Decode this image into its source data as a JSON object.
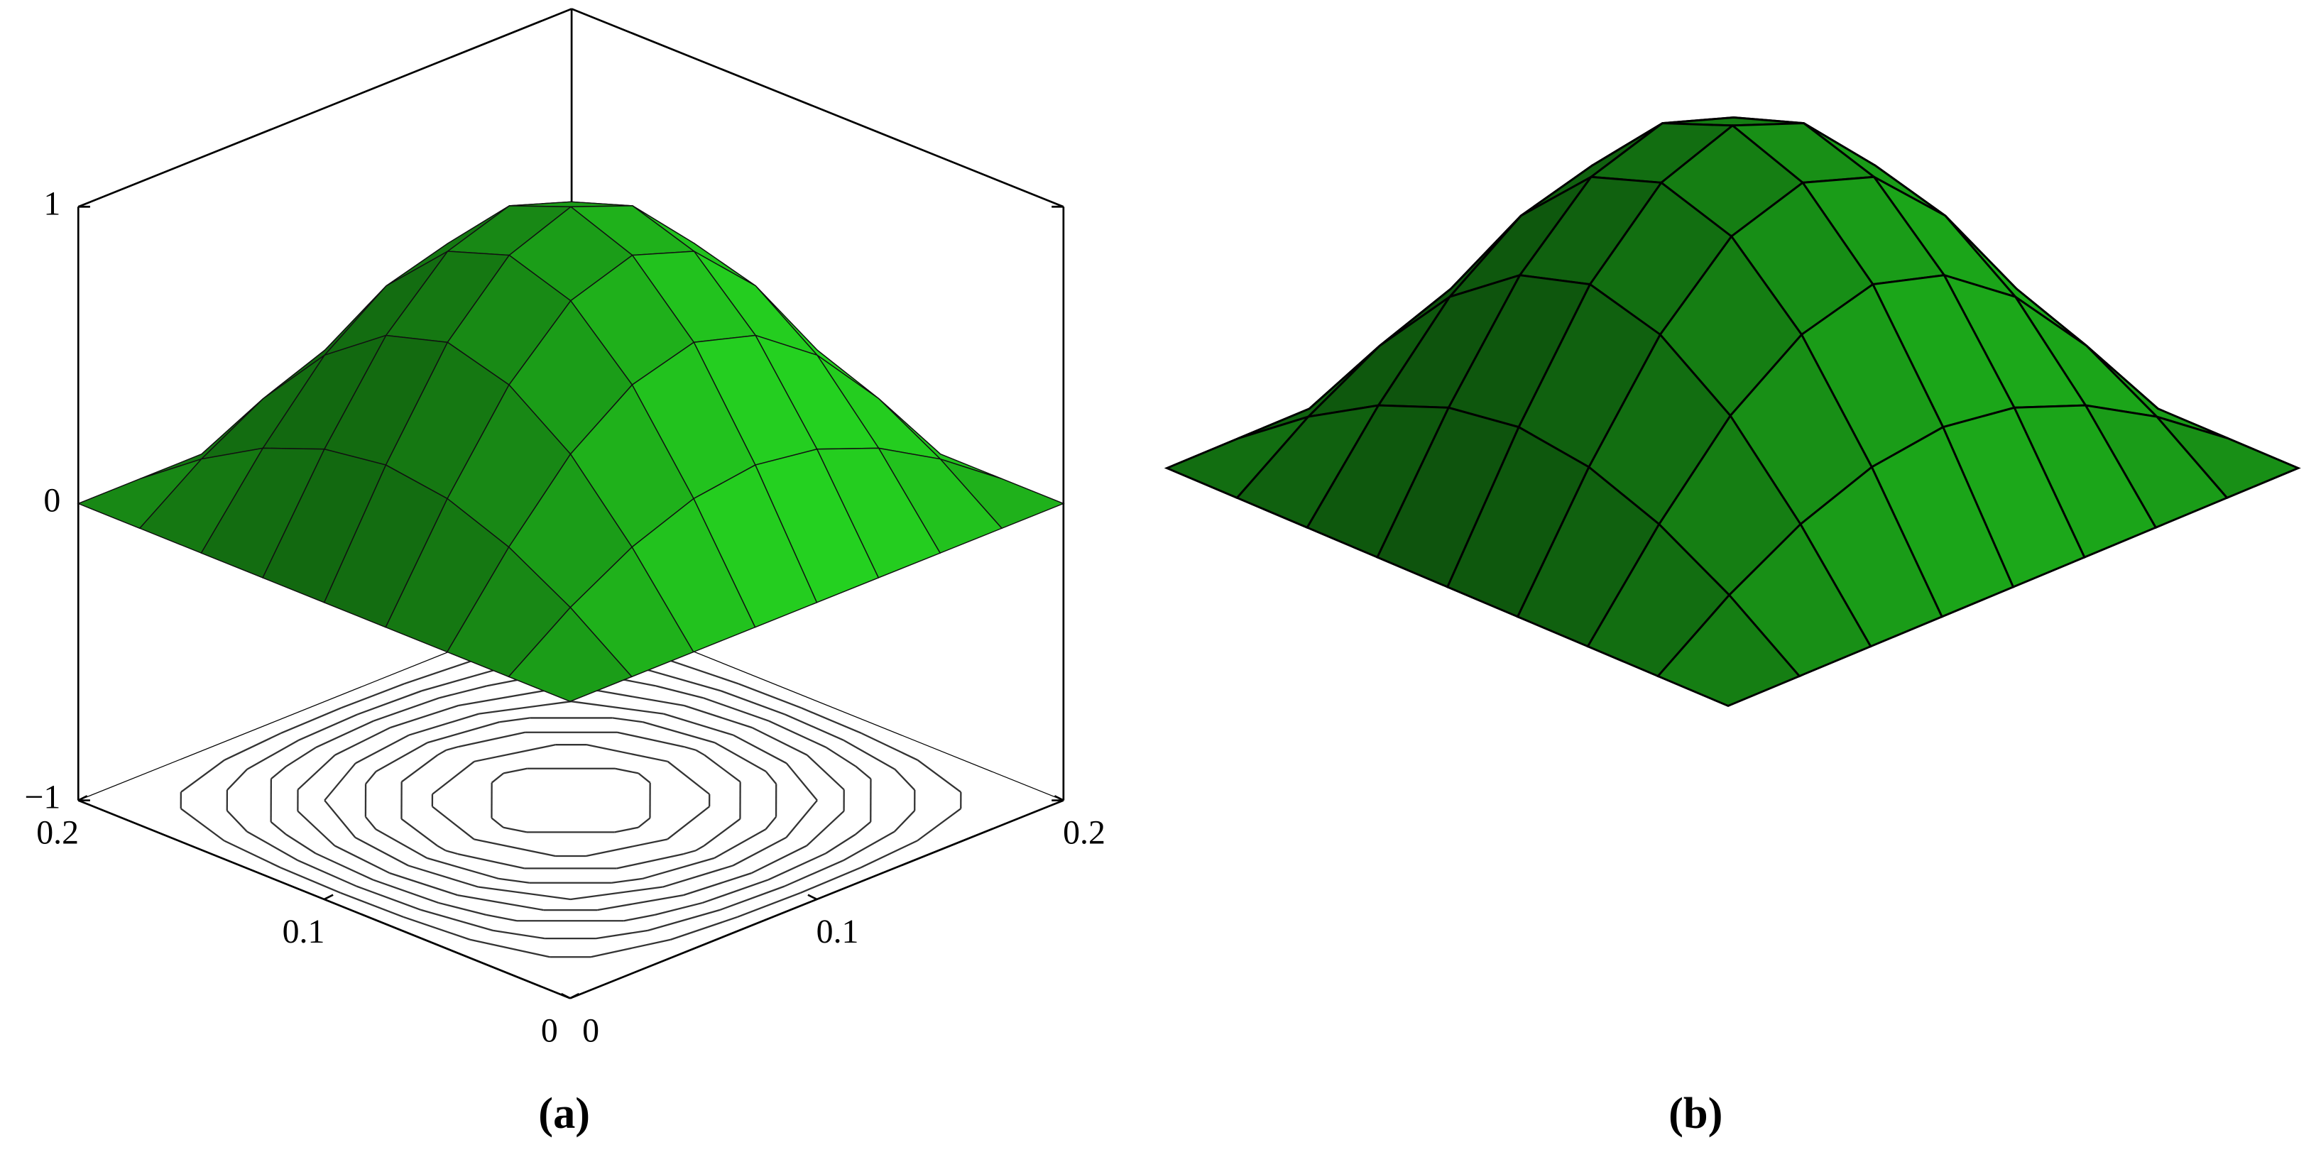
{
  "chart_data": [
    {
      "type": "surface",
      "caption": "(a)",
      "x": [
        0,
        0.025,
        0.05,
        0.075,
        0.1,
        0.125,
        0.15,
        0.175,
        0.2
      ],
      "y": [
        0,
        0.025,
        0.05,
        0.075,
        0.1,
        0.125,
        0.15,
        0.175,
        0.2
      ],
      "z": [
        [
          0,
          0,
          0,
          0,
          0,
          0,
          0,
          0,
          0
        ],
        [
          0,
          0.15,
          0.27,
          0.35,
          0.38,
          0.35,
          0.27,
          0.15,
          0
        ],
        [
          0,
          0.27,
          0.5,
          0.65,
          0.71,
          0.65,
          0.5,
          0.27,
          0
        ],
        [
          0,
          0.35,
          0.65,
          0.85,
          0.92,
          0.85,
          0.65,
          0.35,
          0
        ],
        [
          0,
          0.38,
          0.71,
          0.92,
          1,
          0.92,
          0.71,
          0.38,
          0
        ],
        [
          0,
          0.35,
          0.65,
          0.85,
          0.92,
          0.85,
          0.65,
          0.35,
          0
        ],
        [
          0,
          0.27,
          0.5,
          0.65,
          0.71,
          0.65,
          0.5,
          0.27,
          0
        ],
        [
          0,
          0.15,
          0.27,
          0.35,
          0.38,
          0.35,
          0.27,
          0.15,
          0
        ],
        [
          0,
          0,
          0,
          0,
          0,
          0,
          0,
          0,
          0
        ]
      ],
      "xlim": [
        0,
        0.2
      ],
      "ylim": [
        0,
        0.2
      ],
      "zlim": [
        -1,
        1
      ],
      "xticks": [
        0,
        0.1,
        0.2
      ],
      "yticks": [
        0,
        0.1,
        0.2
      ],
      "zticks": [
        {
          "value": -1,
          "label": "−1"
        },
        0,
        1
      ],
      "contour_levels": [
        0.1,
        0.2,
        0.3,
        0.4,
        0.5,
        0.6,
        0.7,
        0.8,
        0.9
      ],
      "color": "#22c41e",
      "box": true
    },
    {
      "type": "surface",
      "caption": "(b)",
      "x": [
        0,
        0.025,
        0.05,
        0.075,
        0.1,
        0.125,
        0.15,
        0.175,
        0.2
      ],
      "y": [
        0,
        0.025,
        0.05,
        0.075,
        0.1,
        0.125,
        0.15,
        0.175,
        0.2
      ],
      "z": [
        [
          0,
          0,
          0,
          0,
          0,
          0,
          0,
          0,
          0
        ],
        [
          0,
          0.15,
          0.27,
          0.35,
          0.38,
          0.35,
          0.27,
          0.15,
          0
        ],
        [
          0,
          0.27,
          0.5,
          0.65,
          0.71,
          0.65,
          0.5,
          0.27,
          0
        ],
        [
          0,
          0.35,
          0.65,
          0.85,
          0.92,
          0.85,
          0.65,
          0.35,
          0
        ],
        [
          0,
          0.38,
          0.71,
          0.92,
          1,
          0.92,
          0.71,
          0.38,
          0
        ],
        [
          0,
          0.35,
          0.65,
          0.85,
          0.92,
          0.85,
          0.65,
          0.35,
          0
        ],
        [
          0,
          0.27,
          0.5,
          0.65,
          0.71,
          0.65,
          0.5,
          0.27,
          0
        ],
        [
          0,
          0.15,
          0.27,
          0.35,
          0.38,
          0.35,
          0.27,
          0.15,
          0
        ],
        [
          0,
          0,
          0,
          0,
          0,
          0,
          0,
          0,
          0
        ]
      ],
      "color": "#1a9e18",
      "box": false
    }
  ]
}
